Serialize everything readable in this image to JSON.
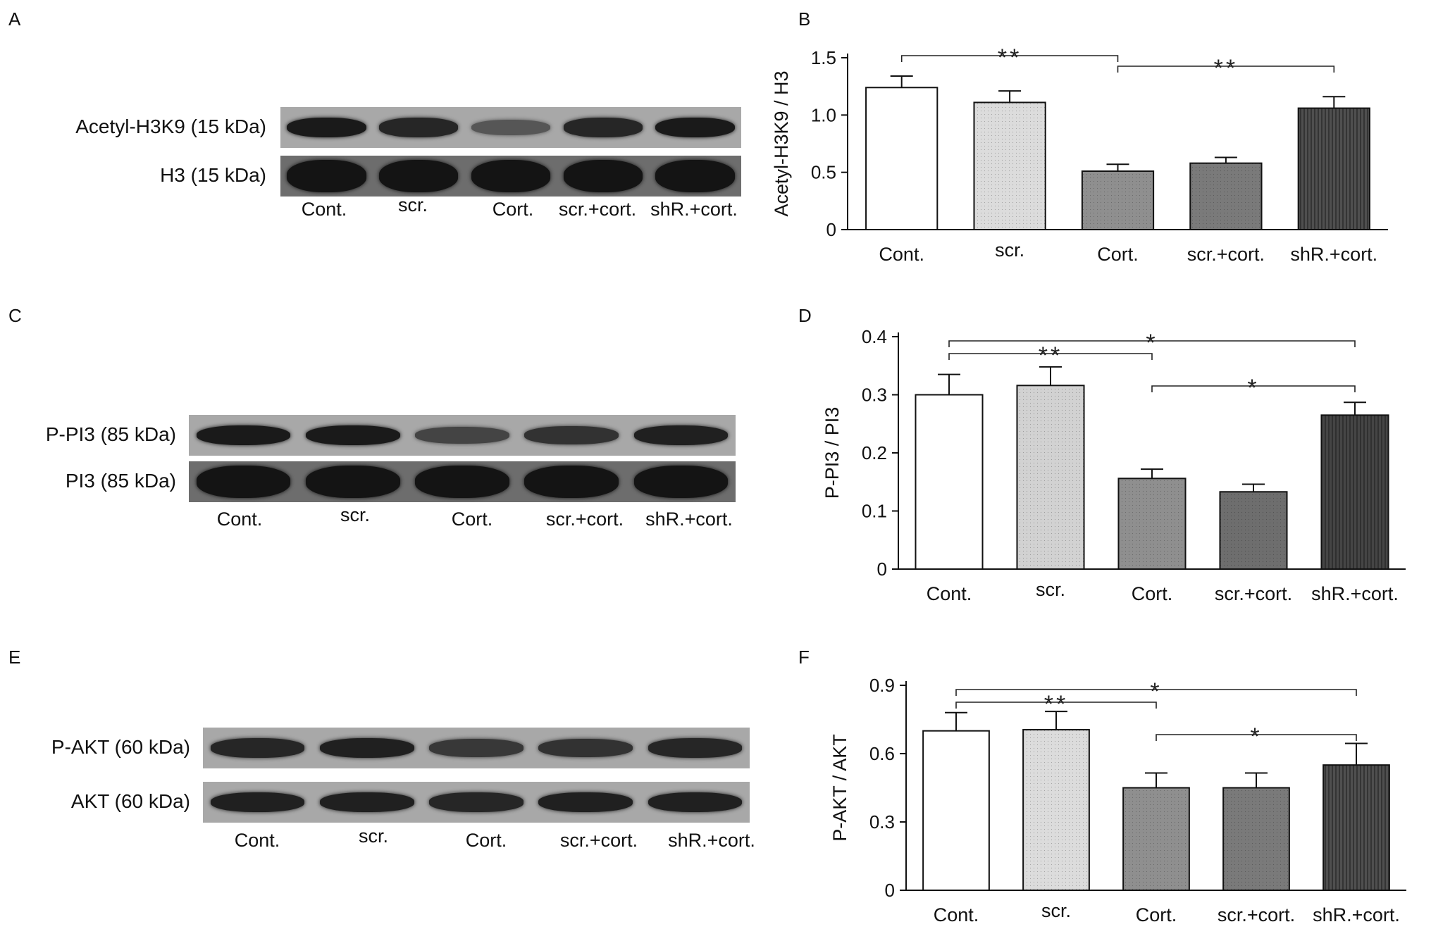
{
  "panels": {
    "a": {
      "letter": "A"
    },
    "b": {
      "letter": "B"
    },
    "c": {
      "letter": "C"
    },
    "d": {
      "letter": "D"
    },
    "e": {
      "letter": "E"
    },
    "f": {
      "letter": "F"
    }
  },
  "blots": [
    {
      "rows": [
        {
          "label": "Acetyl-H3K9 (15 kDa)",
          "bands": [
            0.95,
            0.85,
            0.45,
            0.85,
            0.95
          ]
        },
        {
          "label": "H3 (15 kDa)",
          "bands": [
            1,
            1,
            1,
            1,
            1
          ]
        }
      ],
      "lanes": [
        "Cont.",
        "scr.",
        "Cort.",
        "scr.+cort.",
        "shR.+cort."
      ]
    },
    {
      "rows": [
        {
          "label": "P-PI3 (85 kDa)",
          "bands": [
            0.95,
            0.95,
            0.6,
            0.75,
            0.9
          ]
        },
        {
          "label": "PI3 (85 kDa)",
          "bands": [
            1,
            1,
            1,
            1,
            1
          ]
        }
      ],
      "lanes": [
        "Cont.",
        "scr.",
        "Cort.",
        "scr.+cort.",
        "shR.+cort."
      ]
    },
    {
      "rows": [
        {
          "label": "P-AKT (60 kDa)",
          "bands": [
            0.85,
            0.9,
            0.7,
            0.75,
            0.85
          ]
        },
        {
          "label": "AKT (60 kDa)",
          "bands": [
            0.9,
            0.9,
            0.85,
            0.9,
            0.9
          ]
        }
      ],
      "lanes": [
        "Cont.",
        "scr.",
        "Cort.",
        "scr.+cort.",
        "shR.+cort."
      ]
    }
  ],
  "chart_data": [
    {
      "type": "bar",
      "ylabel": "Acetyl-H3K9 / H3",
      "categories": [
        "Cont.",
        "scr.",
        "Cort.",
        "scr.+cort.",
        "shR.+cort."
      ],
      "values": [
        1.24,
        1.11,
        0.51,
        0.58,
        1.06
      ],
      "errors": [
        0.1,
        0.1,
        0.06,
        0.05,
        0.1
      ],
      "ylim": [
        0,
        1.5
      ],
      "yticks": [
        "0",
        "0.5",
        "1.0",
        "1.5"
      ],
      "fills": [
        "#ffffff",
        "#dcdcdc",
        "#8f8f8f",
        "#7a7a7a",
        "#4f4f4f"
      ],
      "significance": [
        {
          "from": 0,
          "to": 2,
          "label": "**"
        },
        {
          "from": 2,
          "to": 4,
          "label": "**"
        }
      ]
    },
    {
      "type": "bar",
      "ylabel": "P-PI3 / PI3",
      "categories": [
        "Cont.",
        "scr.",
        "Cort.",
        "scr.+cort.",
        "shR.+cort."
      ],
      "values": [
        0.3,
        0.316,
        0.156,
        0.133,
        0.265
      ],
      "errors": [
        0.035,
        0.032,
        0.016,
        0.013,
        0.022
      ],
      "ylim": [
        0,
        0.4
      ],
      "yticks": [
        "0",
        "0.1",
        "0.2",
        "0.3",
        "0.4"
      ],
      "fills": [
        "#ffffff",
        "#d2d2d2",
        "#8f8f8f",
        "#6e6e6e",
        "#454545"
      ],
      "significance": [
        {
          "from": 0,
          "to": 4,
          "label": "*"
        },
        {
          "from": 0,
          "to": 2,
          "label": "**"
        },
        {
          "from": 2,
          "to": 4,
          "label": "*"
        }
      ]
    },
    {
      "type": "bar",
      "ylabel": "P-AKT / AKT",
      "categories": [
        "Cont.",
        "scr.",
        "Cort.",
        "scr.+cort.",
        "shR.+cort."
      ],
      "values": [
        0.7,
        0.705,
        0.45,
        0.45,
        0.55
      ],
      "errors": [
        0.08,
        0.08,
        0.065,
        0.065,
        0.095
      ],
      "ylim": [
        0,
        0.9
      ],
      "yticks": [
        "0",
        "0.3",
        "0.6",
        "0.9"
      ],
      "fills": [
        "#ffffff",
        "#dcdcdc",
        "#8f8f8f",
        "#7a7a7a",
        "#4f4f4f"
      ],
      "significance": [
        {
          "from": 0,
          "to": 4,
          "label": "*"
        },
        {
          "from": 0,
          "to": 2,
          "label": "**"
        },
        {
          "from": 2,
          "to": 4,
          "label": "*"
        }
      ]
    }
  ]
}
